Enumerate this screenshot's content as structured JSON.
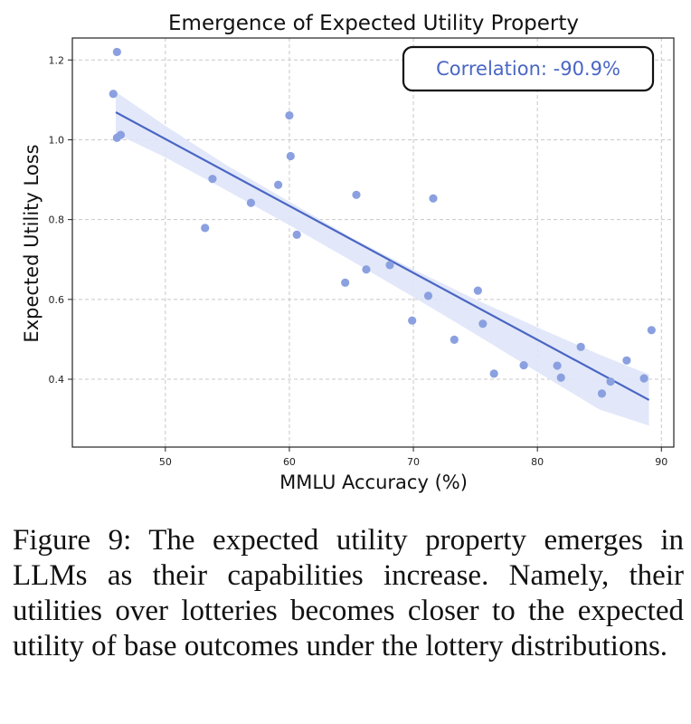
{
  "chart_data": {
    "type": "scatter",
    "title": "Emergence of Expected Utility Property",
    "xlabel": "MMLU Accuracy (%)",
    "ylabel": "Expected Utility Loss",
    "xlim": [
      42.5,
      91
    ],
    "ylim": [
      0.23,
      1.255
    ],
    "xticks": [
      50,
      60,
      70,
      80,
      90
    ],
    "yticks": [
      0.4,
      0.6,
      0.8,
      1.0,
      1.2
    ],
    "xtick_labels": [
      "50",
      "60",
      "70",
      "80",
      "90"
    ],
    "ytick_labels": [
      "0.4",
      "0.6",
      "0.8",
      "1.0",
      "1.2"
    ],
    "grid": true,
    "point_color": "#8aa0e0",
    "line_color": "#4a66c4",
    "band_color": "#dfe5f8",
    "points": [
      {
        "x": 45.8,
        "y": 1.115
      },
      {
        "x": 46.1,
        "y": 1.22
      },
      {
        "x": 46.1,
        "y": 1.005
      },
      {
        "x": 46.4,
        "y": 1.012
      },
      {
        "x": 53.2,
        "y": 0.779
      },
      {
        "x": 53.8,
        "y": 0.902
      },
      {
        "x": 56.9,
        "y": 0.842
      },
      {
        "x": 59.1,
        "y": 0.887
      },
      {
        "x": 60.0,
        "y": 1.061
      },
      {
        "x": 60.1,
        "y": 0.959
      },
      {
        "x": 60.6,
        "y": 0.762
      },
      {
        "x": 64.5,
        "y": 0.642
      },
      {
        "x": 65.4,
        "y": 0.862
      },
      {
        "x": 66.2,
        "y": 0.675
      },
      {
        "x": 68.1,
        "y": 0.686
      },
      {
        "x": 69.9,
        "y": 0.547
      },
      {
        "x": 71.2,
        "y": 0.609
      },
      {
        "x": 71.6,
        "y": 0.853
      },
      {
        "x": 73.3,
        "y": 0.499
      },
      {
        "x": 75.2,
        "y": 0.622
      },
      {
        "x": 75.6,
        "y": 0.539
      },
      {
        "x": 76.5,
        "y": 0.414
      },
      {
        "x": 78.9,
        "y": 0.435
      },
      {
        "x": 81.6,
        "y": 0.434
      },
      {
        "x": 81.9,
        "y": 0.404
      },
      {
        "x": 83.5,
        "y": 0.481
      },
      {
        "x": 85.2,
        "y": 0.364
      },
      {
        "x": 85.9,
        "y": 0.394
      },
      {
        "x": 87.2,
        "y": 0.447
      },
      {
        "x": 88.6,
        "y": 0.402
      },
      {
        "x": 89.2,
        "y": 0.523
      }
    ],
    "regression": {
      "x": [
        46,
        89
      ],
      "y": [
        1.069,
        0.348
      ]
    },
    "confidence_band": {
      "x": [
        46,
        50,
        55,
        60,
        65,
        70,
        75,
        80,
        85,
        89
      ],
      "upper": [
        1.12,
        1.035,
        0.935,
        0.845,
        0.755,
        0.675,
        0.6,
        0.53,
        0.462,
        0.412
      ],
      "lower": [
        1.015,
        0.956,
        0.872,
        0.786,
        0.697,
        0.606,
        0.513,
        0.418,
        0.324,
        0.284
      ]
    },
    "annotation": {
      "text": "Correlation: -90.9%",
      "color": "#4a66c4",
      "placement": "top-right"
    }
  },
  "caption": "Figure 9: The expected utility property emerges in LLMs as their capabilities increase. Namely, their utilities over lotteries becomes closer to the expected utility of base outcomes under the lottery distributions."
}
